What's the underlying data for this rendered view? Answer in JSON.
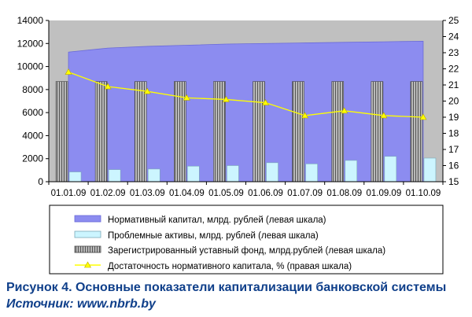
{
  "chart_data": {
    "type": "bar",
    "categories": [
      "01.01.09",
      "01.02.09",
      "01.03.09",
      "01.04.09",
      "01.05.09",
      "01.06.09",
      "01.07.09",
      "01.08.09",
      "01.09.09",
      "01.10.09"
    ],
    "series": [
      {
        "name": "Нормативный капитал, млрд. рублей (левая шкала)",
        "chart_kind": "area",
        "axis": "left",
        "color": "#8c8cf0",
        "values": [
          11250,
          11600,
          11750,
          11850,
          11950,
          12000,
          12050,
          12100,
          12150,
          12200
        ]
      },
      {
        "name": "Проблемные активы, млрд. рублей (левая шкала)",
        "chart_kind": "bar",
        "axis": "left",
        "color": "#ccf5ff",
        "values": [
          850,
          1050,
          1100,
          1350,
          1400,
          1650,
          1550,
          1850,
          2200,
          2050
        ]
      },
      {
        "name": "Зарегистрированный уставный фонд, млрд.рублей (левая шкала)",
        "chart_kind": "bar",
        "axis": "left",
        "color": "#9a9a9a",
        "values": [
          8700,
          8700,
          8700,
          8700,
          8700,
          8700,
          8700,
          8700,
          8700,
          8700
        ]
      },
      {
        "name": "Достаточность нормативного капитала, % (правая шкала)",
        "chart_kind": "line",
        "axis": "right",
        "color": "#ffff00",
        "values": [
          21.8,
          20.9,
          20.6,
          20.2,
          20.1,
          19.9,
          19.1,
          19.4,
          19.1,
          19.0
        ]
      }
    ],
    "left_axis": {
      "min": 0,
      "max": 14000,
      "ticks": [
        "0",
        "2000",
        "4000",
        "6000",
        "8000",
        "10000",
        "12000",
        "14000"
      ]
    },
    "right_axis": {
      "min": 15,
      "max": 25,
      "ticks": [
        "15",
        "16",
        "17",
        "18",
        "19",
        "20",
        "21",
        "22",
        "23",
        "24",
        "25"
      ]
    },
    "grid": false,
    "legend_placement": "bottom"
  },
  "caption": {
    "title": "Рисунок 4. Основные показатели капитализации банковской системы",
    "source": "Источник: www.nbrb.by"
  },
  "colors": {
    "plot_bg": "#c0c0c0",
    "caption": "#0f3f8a"
  }
}
